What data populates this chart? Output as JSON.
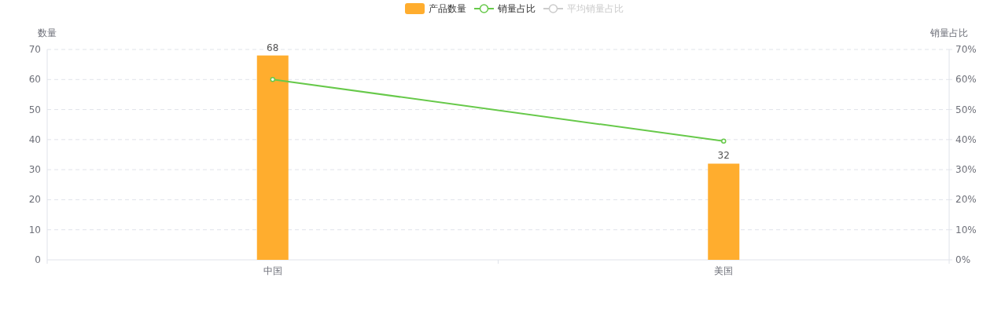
{
  "chart_data": {
    "type": "bar",
    "ylabel": "数量",
    "y2label": "销量占比",
    "categories": [
      "中国",
      "美国"
    ],
    "series": [
      {
        "name": "产品数量",
        "color": "#ffad2e",
        "values": [
          68,
          32
        ],
        "value_labels": [
          "68",
          "32"
        ]
      },
      {
        "name": "销量占比",
        "type": "line",
        "axis": "y2",
        "color": "#67c94a",
        "values": [
          60,
          39.5
        ]
      },
      {
        "name": "平均销量占比",
        "type": "line",
        "axis": "y2",
        "color": "#cccccc",
        "values": [
          null,
          null
        ]
      }
    ],
    "marker": "circle",
    "grid": "y",
    "legend": "top",
    "ylim": [
      0,
      70
    ],
    "yticks": [
      0,
      10,
      20,
      30,
      40,
      50,
      60,
      70
    ],
    "y2lim": [
      0,
      70
    ],
    "y2ticks": [
      {
        "value": 0,
        "label": "0%"
      },
      {
        "value": 10,
        "label": "10%"
      },
      {
        "value": 20,
        "label": "20%"
      },
      {
        "value": 30,
        "label": "30%"
      },
      {
        "value": 40,
        "label": "40%"
      },
      {
        "value": 50,
        "label": "50%"
      },
      {
        "value": 60,
        "label": "60%"
      },
      {
        "value": 70,
        "label": "70%"
      }
    ]
  }
}
